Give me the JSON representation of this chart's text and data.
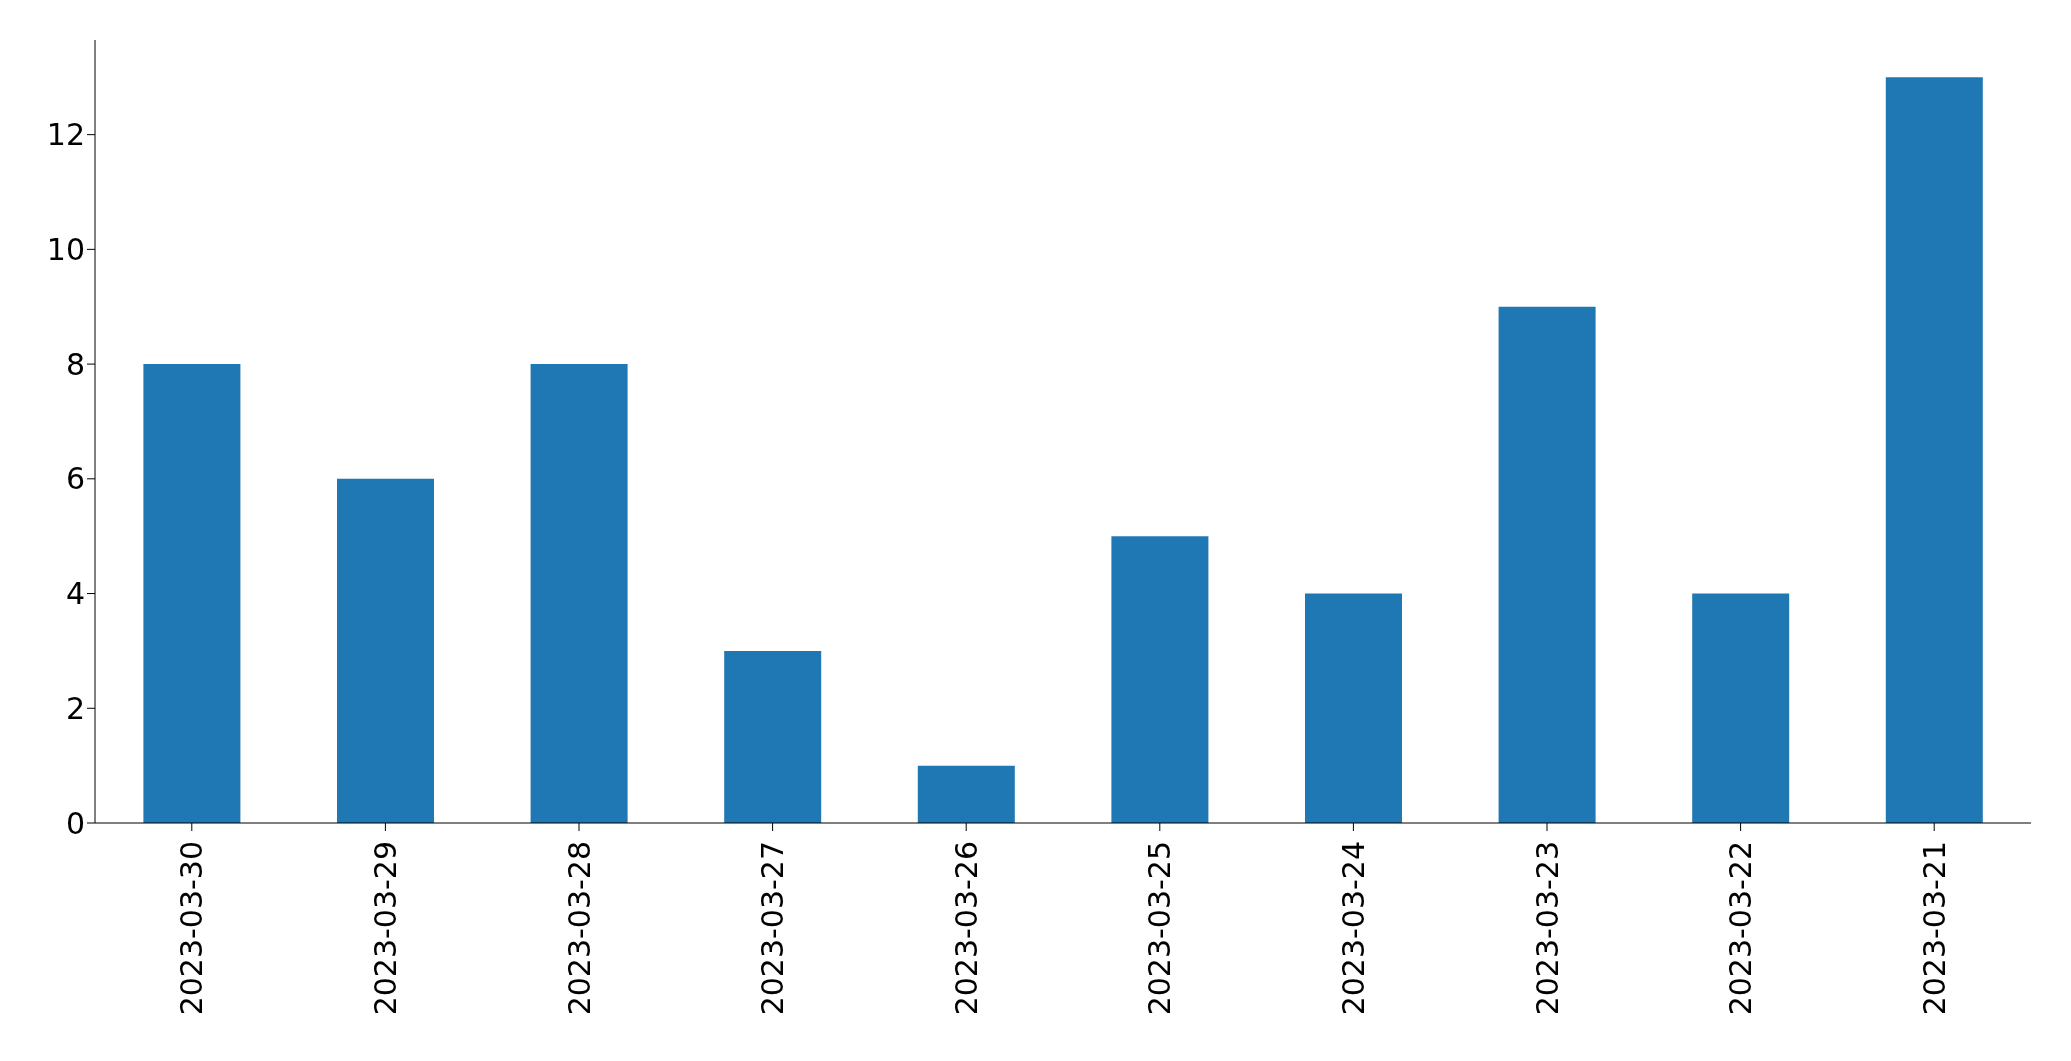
{
  "chart_data": {
    "type": "bar",
    "categories": [
      "2023-03-30",
      "2023-03-29",
      "2023-03-28",
      "2023-03-27",
      "2023-03-26",
      "2023-03-25",
      "2023-03-24",
      "2023-03-23",
      "2023-03-22",
      "2023-03-21"
    ],
    "values": [
      8,
      6,
      8,
      3,
      1,
      5,
      4,
      9,
      4,
      13
    ],
    "color": "#1f77b4",
    "ylim": [
      0,
      13.65
    ],
    "yticks": [
      0,
      2,
      4,
      6,
      8,
      10,
      12
    ],
    "grid": false,
    "legend": false
  }
}
